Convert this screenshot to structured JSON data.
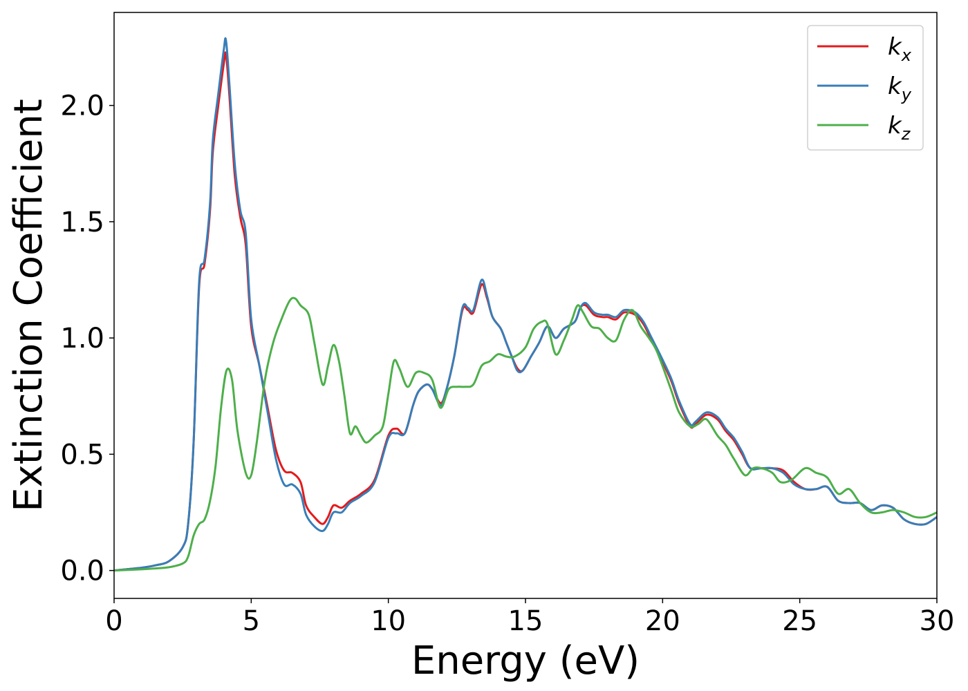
{
  "chart_data": {
    "type": "line",
    "title": "",
    "xlabel": "Energy (eV)",
    "ylabel": "Extinction Coefficient",
    "xlim": [
      0,
      30
    ],
    "ylim": [
      -0.12,
      2.4
    ],
    "xticks": [
      0,
      5,
      10,
      15,
      20,
      25,
      30
    ],
    "xtick_labels": [
      "0",
      "5",
      "10",
      "15",
      "20",
      "25",
      "30"
    ],
    "yticks": [
      0.0,
      0.5,
      1.0,
      1.5,
      2.0
    ],
    "ytick_labels": [
      "0.0",
      "0.5",
      "1.0",
      "1.5",
      "2.0"
    ],
    "grid": false,
    "legend_position": "top-right",
    "series": [
      {
        "name": "k",
        "subscript": "x",
        "color": "#e41a1c",
        "points": [
          [
            0,
            0
          ],
          [
            1,
            0.012
          ],
          [
            1.5,
            0.022
          ],
          [
            2,
            0.04
          ],
          [
            2.5,
            0.1
          ],
          [
            2.7,
            0.2
          ],
          [
            2.9,
            0.55
          ],
          [
            3.1,
            1.22
          ],
          [
            3.3,
            1.32
          ],
          [
            3.5,
            1.55
          ],
          [
            3.6,
            1.8
          ],
          [
            3.8,
            2.0
          ],
          [
            4.0,
            2.18
          ],
          [
            4.08,
            2.22
          ],
          [
            4.2,
            2.05
          ],
          [
            4.4,
            1.7
          ],
          [
            4.6,
            1.52
          ],
          [
            4.8,
            1.4
          ],
          [
            5.0,
            1.05
          ],
          [
            5.3,
            0.88
          ],
          [
            5.6,
            0.7
          ],
          [
            5.9,
            0.52
          ],
          [
            6.2,
            0.43
          ],
          [
            6.5,
            0.42
          ],
          [
            6.8,
            0.38
          ],
          [
            7.0,
            0.28
          ],
          [
            7.3,
            0.23
          ],
          [
            7.6,
            0.2
          ],
          [
            7.8,
            0.23
          ],
          [
            8.0,
            0.28
          ],
          [
            8.3,
            0.27
          ],
          [
            8.6,
            0.3
          ],
          [
            9.0,
            0.33
          ],
          [
            9.5,
            0.39
          ],
          [
            10.0,
            0.58
          ],
          [
            10.3,
            0.61
          ],
          [
            10.6,
            0.59
          ],
          [
            10.9,
            0.71
          ],
          [
            11.1,
            0.77
          ],
          [
            11.4,
            0.8
          ],
          [
            11.6,
            0.78
          ],
          [
            11.9,
            0.72
          ],
          [
            12.1,
            0.77
          ],
          [
            12.4,
            0.92
          ],
          [
            12.7,
            1.12
          ],
          [
            12.9,
            1.12
          ],
          [
            13.1,
            1.11
          ],
          [
            13.4,
            1.23
          ],
          [
            13.6,
            1.17
          ],
          [
            13.8,
            1.09
          ],
          [
            14.1,
            1.04
          ],
          [
            14.3,
            0.98
          ],
          [
            14.5,
            0.92
          ],
          [
            14.7,
            0.87
          ],
          [
            14.9,
            0.86
          ],
          [
            15.2,
            0.92
          ],
          [
            15.5,
            0.98
          ],
          [
            15.8,
            1.05
          ],
          [
            16.1,
            1.0
          ],
          [
            16.4,
            1.04
          ],
          [
            16.8,
            1.07
          ],
          [
            17.0,
            1.13
          ],
          [
            17.2,
            1.14
          ],
          [
            17.5,
            1.1
          ],
          [
            17.8,
            1.09
          ],
          [
            18.0,
            1.09
          ],
          [
            18.3,
            1.08
          ],
          [
            18.6,
            1.11
          ],
          [
            19.0,
            1.1
          ],
          [
            19.3,
            1.06
          ],
          [
            19.6,
            0.99
          ],
          [
            19.9,
            0.92
          ],
          [
            20.3,
            0.82
          ],
          [
            20.6,
            0.72
          ],
          [
            21.0,
            0.62
          ],
          [
            21.2,
            0.63
          ],
          [
            21.6,
            0.67
          ],
          [
            22.0,
            0.65
          ],
          [
            22.3,
            0.6
          ],
          [
            22.6,
            0.56
          ],
          [
            22.9,
            0.5
          ],
          [
            23.2,
            0.44
          ],
          [
            23.6,
            0.44
          ],
          [
            24.0,
            0.44
          ],
          [
            24.4,
            0.43
          ],
          [
            24.8,
            0.38
          ],
          [
            25.2,
            0.35
          ],
          [
            25.6,
            0.35
          ],
          [
            26.0,
            0.36
          ],
          [
            26.4,
            0.3
          ],
          [
            26.8,
            0.29
          ],
          [
            27.2,
            0.29
          ],
          [
            27.6,
            0.26
          ],
          [
            28.0,
            0.28
          ],
          [
            28.4,
            0.27
          ],
          [
            28.8,
            0.22
          ],
          [
            29.2,
            0.2
          ],
          [
            29.6,
            0.2
          ],
          [
            30.0,
            0.23
          ]
        ]
      },
      {
        "name": "k",
        "subscript": "y",
        "color": "#377eb8",
        "points": [
          [
            0,
            0
          ],
          [
            1,
            0.012
          ],
          [
            1.5,
            0.022
          ],
          [
            2,
            0.04
          ],
          [
            2.5,
            0.1
          ],
          [
            2.7,
            0.2
          ],
          [
            2.9,
            0.55
          ],
          [
            3.1,
            1.24
          ],
          [
            3.3,
            1.34
          ],
          [
            3.5,
            1.58
          ],
          [
            3.6,
            1.85
          ],
          [
            3.8,
            2.05
          ],
          [
            4.0,
            2.24
          ],
          [
            4.08,
            2.28
          ],
          [
            4.2,
            2.1
          ],
          [
            4.4,
            1.75
          ],
          [
            4.6,
            1.55
          ],
          [
            4.8,
            1.45
          ],
          [
            5.0,
            1.08
          ],
          [
            5.3,
            0.88
          ],
          [
            5.6,
            0.68
          ],
          [
            5.9,
            0.48
          ],
          [
            6.2,
            0.37
          ],
          [
            6.5,
            0.37
          ],
          [
            6.8,
            0.33
          ],
          [
            7.0,
            0.24
          ],
          [
            7.3,
            0.19
          ],
          [
            7.6,
            0.17
          ],
          [
            7.8,
            0.2
          ],
          [
            8.0,
            0.25
          ],
          [
            8.3,
            0.25
          ],
          [
            8.6,
            0.29
          ],
          [
            9.0,
            0.32
          ],
          [
            9.5,
            0.38
          ],
          [
            10.0,
            0.57
          ],
          [
            10.3,
            0.59
          ],
          [
            10.6,
            0.59
          ],
          [
            10.9,
            0.71
          ],
          [
            11.1,
            0.77
          ],
          [
            11.4,
            0.8
          ],
          [
            11.6,
            0.78
          ],
          [
            11.9,
            0.71
          ],
          [
            12.1,
            0.77
          ],
          [
            12.4,
            0.92
          ],
          [
            12.7,
            1.13
          ],
          [
            12.9,
            1.13
          ],
          [
            13.1,
            1.12
          ],
          [
            13.4,
            1.25
          ],
          [
            13.6,
            1.18
          ],
          [
            13.8,
            1.09
          ],
          [
            14.1,
            1.04
          ],
          [
            14.3,
            0.98
          ],
          [
            14.5,
            0.92
          ],
          [
            14.7,
            0.86
          ],
          [
            14.9,
            0.86
          ],
          [
            15.2,
            0.92
          ],
          [
            15.5,
            0.98
          ],
          [
            15.8,
            1.05
          ],
          [
            16.1,
            1.0
          ],
          [
            16.4,
            1.04
          ],
          [
            16.8,
            1.07
          ],
          [
            17.0,
            1.13
          ],
          [
            17.2,
            1.15
          ],
          [
            17.5,
            1.11
          ],
          [
            17.8,
            1.1
          ],
          [
            18.0,
            1.1
          ],
          [
            18.3,
            1.09
          ],
          [
            18.6,
            1.12
          ],
          [
            19.0,
            1.11
          ],
          [
            19.3,
            1.07
          ],
          [
            19.6,
            1.0
          ],
          [
            19.9,
            0.93
          ],
          [
            20.3,
            0.83
          ],
          [
            20.6,
            0.73
          ],
          [
            21.0,
            0.63
          ],
          [
            21.2,
            0.64
          ],
          [
            21.6,
            0.68
          ],
          [
            22.0,
            0.66
          ],
          [
            22.3,
            0.61
          ],
          [
            22.6,
            0.57
          ],
          [
            22.9,
            0.51
          ],
          [
            23.2,
            0.44
          ],
          [
            23.6,
            0.44
          ],
          [
            24.0,
            0.44
          ],
          [
            24.4,
            0.42
          ],
          [
            24.8,
            0.37
          ],
          [
            25.2,
            0.35
          ],
          [
            25.6,
            0.35
          ],
          [
            26.0,
            0.36
          ],
          [
            26.4,
            0.3
          ],
          [
            26.8,
            0.29
          ],
          [
            27.2,
            0.29
          ],
          [
            27.6,
            0.26
          ],
          [
            28.0,
            0.28
          ],
          [
            28.4,
            0.27
          ],
          [
            28.8,
            0.22
          ],
          [
            29.2,
            0.2
          ],
          [
            29.6,
            0.2
          ],
          [
            30.0,
            0.23
          ]
        ]
      },
      {
        "name": "k",
        "subscript": "z",
        "color": "#4daf4a",
        "points": [
          [
            0,
            0
          ],
          [
            1,
            0.005
          ],
          [
            1.5,
            0.009
          ],
          [
            2,
            0.014
          ],
          [
            2.5,
            0.03
          ],
          [
            2.7,
            0.06
          ],
          [
            2.9,
            0.15
          ],
          [
            3.1,
            0.2
          ],
          [
            3.3,
            0.22
          ],
          [
            3.5,
            0.3
          ],
          [
            3.7,
            0.45
          ],
          [
            3.9,
            0.7
          ],
          [
            4.1,
            0.86
          ],
          [
            4.3,
            0.82
          ],
          [
            4.5,
            0.6
          ],
          [
            4.8,
            0.42
          ],
          [
            5.0,
            0.41
          ],
          [
            5.2,
            0.55
          ],
          [
            5.5,
            0.82
          ],
          [
            5.8,
            0.98
          ],
          [
            6.1,
            1.08
          ],
          [
            6.4,
            1.16
          ],
          [
            6.6,
            1.17
          ],
          [
            6.8,
            1.14
          ],
          [
            7.1,
            1.1
          ],
          [
            7.3,
            0.98
          ],
          [
            7.6,
            0.8
          ],
          [
            7.8,
            0.88
          ],
          [
            8.0,
            0.97
          ],
          [
            8.2,
            0.9
          ],
          [
            8.4,
            0.75
          ],
          [
            8.6,
            0.59
          ],
          [
            8.8,
            0.62
          ],
          [
            9.0,
            0.58
          ],
          [
            9.2,
            0.55
          ],
          [
            9.5,
            0.58
          ],
          [
            9.8,
            0.62
          ],
          [
            10.0,
            0.76
          ],
          [
            10.2,
            0.9
          ],
          [
            10.4,
            0.87
          ],
          [
            10.7,
            0.79
          ],
          [
            11.0,
            0.85
          ],
          [
            11.3,
            0.85
          ],
          [
            11.6,
            0.82
          ],
          [
            11.9,
            0.7
          ],
          [
            12.2,
            0.78
          ],
          [
            12.5,
            0.79
          ],
          [
            12.8,
            0.79
          ],
          [
            13.1,
            0.8
          ],
          [
            13.4,
            0.88
          ],
          [
            13.7,
            0.9
          ],
          [
            14.0,
            0.93
          ],
          [
            14.3,
            0.92
          ],
          [
            14.6,
            0.92
          ],
          [
            15.0,
            0.96
          ],
          [
            15.3,
            1.04
          ],
          [
            15.6,
            1.07
          ],
          [
            15.8,
            1.06
          ],
          [
            16.1,
            0.93
          ],
          [
            16.4,
            0.99
          ],
          [
            16.7,
            1.08
          ],
          [
            16.9,
            1.14
          ],
          [
            17.1,
            1.11
          ],
          [
            17.4,
            1.05
          ],
          [
            17.7,
            1.04
          ],
          [
            18.0,
            1.0
          ],
          [
            18.3,
            0.99
          ],
          [
            18.6,
            1.08
          ],
          [
            18.9,
            1.12
          ],
          [
            19.2,
            1.05
          ],
          [
            19.5,
            1.0
          ],
          [
            19.8,
            0.94
          ],
          [
            20.3,
            0.78
          ],
          [
            20.6,
            0.68
          ],
          [
            21.0,
            0.62
          ],
          [
            21.3,
            0.63
          ],
          [
            21.6,
            0.65
          ],
          [
            22.0,
            0.58
          ],
          [
            22.3,
            0.54
          ],
          [
            22.6,
            0.48
          ],
          [
            23.0,
            0.41
          ],
          [
            23.3,
            0.44
          ],
          [
            23.6,
            0.44
          ],
          [
            24.0,
            0.42
          ],
          [
            24.3,
            0.38
          ],
          [
            24.7,
            0.39
          ],
          [
            25.2,
            0.44
          ],
          [
            25.6,
            0.42
          ],
          [
            26.0,
            0.4
          ],
          [
            26.4,
            0.33
          ],
          [
            26.8,
            0.35
          ],
          [
            27.2,
            0.29
          ],
          [
            27.6,
            0.25
          ],
          [
            28.0,
            0.25
          ],
          [
            28.4,
            0.26
          ],
          [
            28.8,
            0.25
          ],
          [
            29.2,
            0.23
          ],
          [
            29.6,
            0.23
          ],
          [
            30.0,
            0.25
          ]
        ]
      }
    ]
  }
}
